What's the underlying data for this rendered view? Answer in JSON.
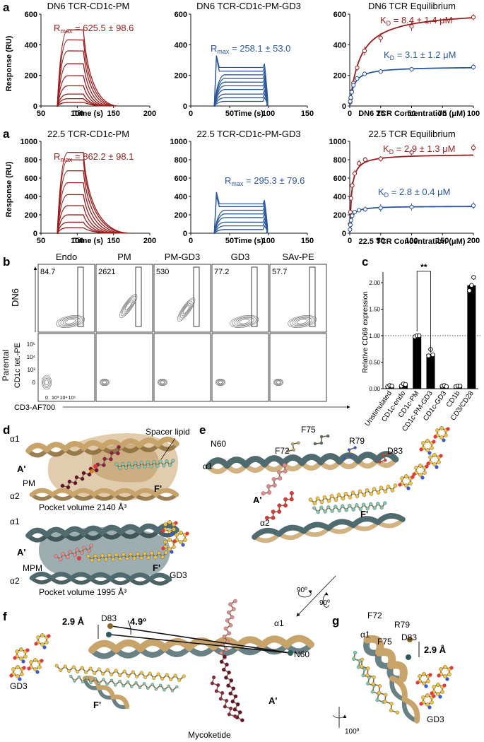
{
  "panel_letters": {
    "a1": "a",
    "a2": "a",
    "b": "b",
    "c": "c",
    "d": "d",
    "e": "e",
    "f": "f",
    "g": "g"
  },
  "colors": {
    "pm": "#9b1c1c",
    "gd3": "#2a56a0",
    "tan": "#c9a46a",
    "slate": "#4f6b70",
    "lipid_yellow": "#f2c23a",
    "lipid_red": "#e03a3a",
    "lipid_pink": "#e6898c",
    "lipid_mint": "#7fc9b0",
    "lipid_dark": "#6b1026"
  },
  "a_top": {
    "sens1": {
      "title": "DN6 TCR-CD1c-PM",
      "rmax": "R",
      "rmax_sub": "max",
      "rmax_val": " = 625.5 ± 98.6",
      "xlabel": "Time (s)",
      "ylabel": "Response (RU)",
      "xticks": [
        "50",
        "100",
        "150",
        "200"
      ],
      "yticks": [
        "0",
        "200",
        "400",
        "600"
      ]
    },
    "sens2": {
      "title": "DN6 TCR-CD1c-PM-GD3",
      "rmax": "R",
      "rmax_sub": "max",
      "rmax_val": " = 258.1 ± 53.0",
      "xlabel": "Time (s)",
      "xticks": [
        "0",
        "50",
        "100",
        "150"
      ],
      "yticks": [
        "0",
        "200",
        "400",
        "600"
      ]
    },
    "eq": {
      "title": "DN6 TCR Equilibrium",
      "kd_pm": "K",
      "kd_sub": "D",
      "kd_pm_val": " = 8.4 ± 1.4 μM",
      "kd_gd3_val": " = 3.1 ± 1.2 μM",
      "xlabel": "DN6 TCR Concentration (μM)",
      "xticks": [
        "0",
        "25",
        "50",
        "75",
        "100"
      ],
      "yticks": [
        "0",
        "200",
        "400",
        "600"
      ]
    }
  },
  "a_bottom": {
    "sens1": {
      "title": "22.5 TCR-CD1c-PM",
      "rmax": "R",
      "rmax_sub": "max",
      "rmax_val": " = 862.2 ± 98.1",
      "xlabel": "Time (s)",
      "ylabel": "Response (RU)",
      "xticks": [
        "50",
        "100",
        "150",
        "200"
      ],
      "yticks": [
        "0",
        "200",
        "400",
        "600",
        "800",
        "1000"
      ]
    },
    "sens2": {
      "title": "22.5 TCR-CD1c-PM-GD3",
      "rmax": "R",
      "rmax_sub": "max",
      "rmax_val": " = 295.3 ± 79.6",
      "xlabel": "Time (s)",
      "xticks": [
        "0",
        "50",
        "100",
        "150"
      ],
      "yticks": [
        "0",
        "200",
        "400",
        "600",
        "800",
        "1000"
      ]
    },
    "eq": {
      "title": "22.5 TCR Equilibrium",
      "kd_pm": "K",
      "kd_sub": "D",
      "kd_pm_val": " = 2.9 ± 1.3 μM",
      "kd_gd3_val": " = 2.8 ± 0.4 μM",
      "xlabel": "22.5 TCR Concentration (μM)",
      "xticks": [
        "0",
        "50",
        "100",
        "150",
        "200"
      ],
      "yticks": [
        "0",
        "200",
        "400",
        "600",
        "800",
        "1000"
      ]
    }
  },
  "b": {
    "columns": [
      "Endo",
      "PM",
      "PM-GD3",
      "GD3",
      "SAv-PE"
    ],
    "values": [
      "84.7",
      "2621",
      "530",
      "77.2",
      "57.7"
    ],
    "row_labels": [
      "DN6",
      "Parental"
    ],
    "ylabel": "CD1c tet.-PE",
    "xlabel": "CD3-AF700",
    "yticks": [
      "0",
      "10³",
      "10⁴",
      "10⁵"
    ],
    "xticks": [
      "0",
      "10³",
      "10⁴",
      "10⁵"
    ]
  },
  "chart_data": {
    "type": "bar",
    "categories": [
      "Unstimulated",
      "CD1c-endo",
      "CD1c-PM",
      "CD1c-PM-GD3",
      "CD1c-GD3",
      "CD1b",
      "CD3/CD28"
    ],
    "values": [
      0.05,
      0.07,
      1.0,
      0.65,
      0.05,
      0.04,
      1.95
    ],
    "points": [
      [
        0.04,
        0.06,
        0.05
      ],
      [
        0.05,
        0.09,
        0.08
      ],
      [
        0.98,
        1.0,
        1.0
      ],
      [
        0.62,
        0.74,
        0.64
      ],
      [
        0.05,
        0.06,
        0.04
      ],
      [
        0.04,
        0.05,
        0.05
      ],
      [
        1.85,
        1.95,
        2.1
      ]
    ],
    "ylabel": "Relative CD69 expression",
    "yticks": [
      "0.00",
      "0.50",
      "1.00",
      "1.50",
      "2.00"
    ],
    "ylim": [
      0,
      2.2
    ],
    "reference_line": 1.0,
    "significance": "**"
  },
  "d": {
    "top_labels": {
      "a1": "α1",
      "A": "A'",
      "PM": "PM",
      "a2": "α2",
      "F": "F'",
      "spacer": "Spacer lipid",
      "pocket": "Pocket volume 2140 Å³"
    },
    "bot_labels": {
      "a1": "α1",
      "A": "A'",
      "MPM": "MPM",
      "a2": "α2",
      "F": "F'",
      "GD3": "GD3",
      "pocket": "Pocket volume 1995 Å³"
    }
  },
  "e": {
    "labels": {
      "N60": "N60",
      "F72": "F72",
      "F75": "F75",
      "R79": "R79",
      "D83": "D83",
      "a1": "α1",
      "A": "A'",
      "a2": "α2",
      "F": "F'"
    },
    "rot1": "90º",
    "rot2": "90º"
  },
  "f": {
    "labels": {
      "dist": "2.9 Å",
      "D83": "D83",
      "angle": "4.9º",
      "a1": "α1",
      "N60": "N60",
      "GD3": "GD3",
      "F": "F'",
      "A": "A'",
      "myco": "Mycoketide"
    }
  },
  "g": {
    "labels": {
      "F72": "F72",
      "R79": "R79",
      "a1": "α1",
      "F75": "F75",
      "D83": "D83",
      "dist": "2.9 Å",
      "GD3": "GD3"
    },
    "rot": "100º"
  }
}
